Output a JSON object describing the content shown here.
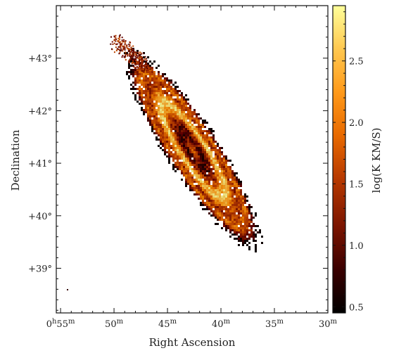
{
  "chart_data": {
    "type": "heatmap",
    "title": "",
    "xlabel": "Right Ascension",
    "ylabel": "Declination",
    "colorbar_label": "log(K KM/S)",
    "x_ticks": [
      {
        "value": 55,
        "label_prefix": "0",
        "label_h": "h",
        "label_main": "55",
        "label_unit": "m"
      },
      {
        "value": 50,
        "label_prefix": "",
        "label_h": "",
        "label_main": "50",
        "label_unit": "m"
      },
      {
        "value": 45,
        "label_prefix": "",
        "label_h": "",
        "label_main": "45",
        "label_unit": "m"
      },
      {
        "value": 40,
        "label_prefix": "",
        "label_h": "",
        "label_main": "40",
        "label_unit": "m"
      },
      {
        "value": 35,
        "label_prefix": "",
        "label_h": "",
        "label_main": "35",
        "label_unit": "m"
      },
      {
        "value": 30,
        "label_prefix": "",
        "label_h": "",
        "label_main": "30",
        "label_unit": "m"
      }
    ],
    "y_ticks": [
      {
        "value": 43,
        "label": "+43°"
      },
      {
        "value": 42,
        "label": "+42°"
      },
      {
        "value": 41,
        "label": "+41°"
      },
      {
        "value": 40,
        "label": "+40°"
      },
      {
        "value": 39,
        "label": "+39°"
      }
    ],
    "xlim": [
      55.4,
      30
    ],
    "ylim": [
      38.15,
      44
    ],
    "colorbar": {
      "min": 0.45,
      "max": 2.95,
      "ticks": [
        0.5,
        1.0,
        1.5,
        2.0,
        2.5
      ],
      "tick_labels": [
        "0.5",
        "1.0",
        "1.5",
        "2.0",
        "2.5"
      ],
      "colormap": [
        "#000000",
        "#3a0000",
        "#7a1400",
        "#b83a00",
        "#e86a00",
        "#ff9a1a",
        "#ffc850",
        "#ffff9a"
      ]
    },
    "source": {
      "center_ra_min": 42.7,
      "center_dec_deg": 41.27,
      "position_angle_deg": 38,
      "major_axis_extent_deg": 4.2,
      "minor_axis_extent_deg": 0.95,
      "ring_radius_fraction": 0.5,
      "peak_value": 2.9
    }
  }
}
